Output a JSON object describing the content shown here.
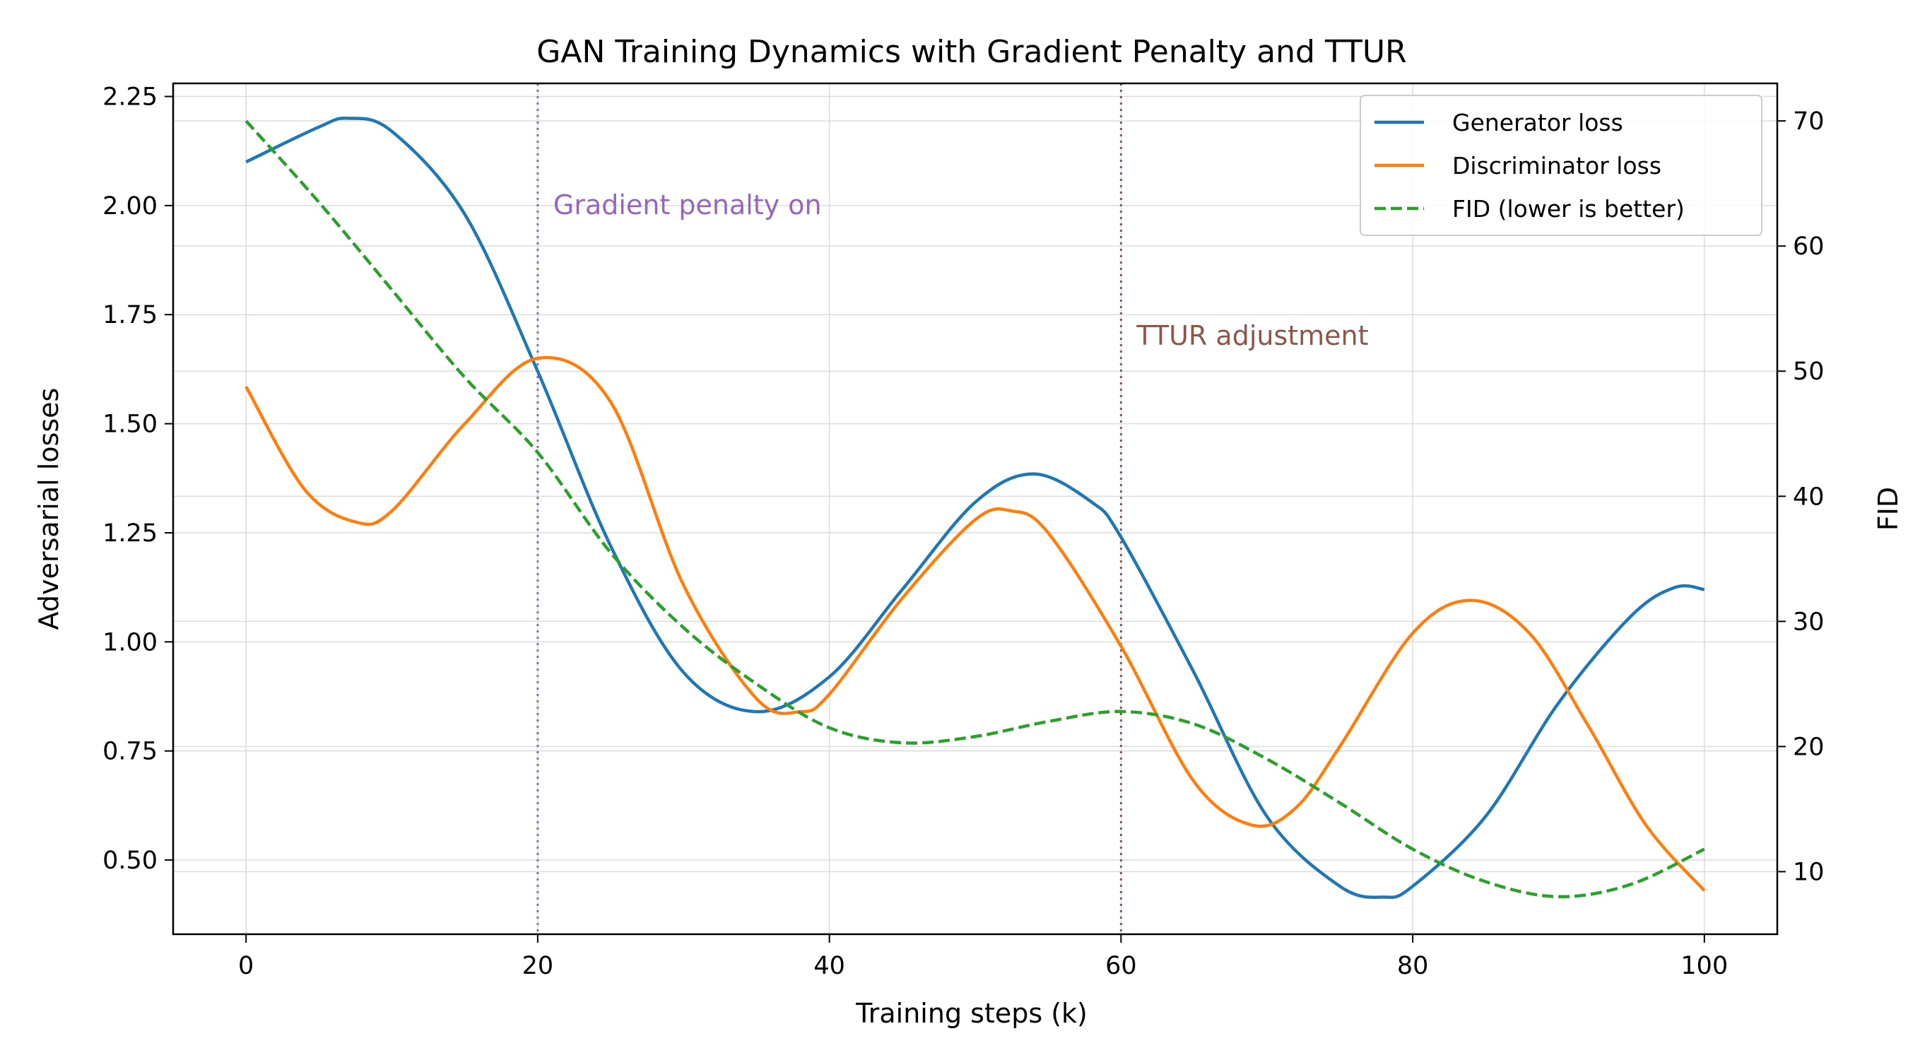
{
  "chart_data": {
    "type": "line",
    "title": "GAN Training Dynamics with Gradient Penalty and TTUR",
    "xlabel": "Training steps (k)",
    "ylabel": "Adversarial losses",
    "y2label": "FID",
    "xlim": [
      -5,
      105
    ],
    "ylim": [
      0.33,
      2.28
    ],
    "y2lim": [
      5,
      73
    ],
    "xticks": [
      0,
      20,
      40,
      60,
      80,
      100
    ],
    "yticks": [
      0.5,
      0.75,
      1.0,
      1.25,
      1.5,
      1.75,
      2.0,
      2.25
    ],
    "ytick_labels": [
      "0.50",
      "0.75",
      "1.00",
      "1.25",
      "1.50",
      "1.75",
      "2.00",
      "2.25"
    ],
    "y2ticks": [
      10,
      20,
      30,
      40,
      50,
      60,
      70
    ],
    "grid": true,
    "legend_position": "top-right",
    "series": [
      {
        "name": "Generator loss",
        "axis": "left",
        "color": "#1f77b4",
        "style": "solid",
        "x": [
          0,
          5,
          7,
          10,
          15,
          20,
          25,
          30,
          35,
          40,
          45,
          50,
          54,
          58,
          60,
          65,
          70,
          75,
          78,
          80,
          85,
          90,
          95,
          98,
          100
        ],
        "y": [
          2.1,
          2.18,
          2.2,
          2.17,
          1.98,
          1.62,
          1.22,
          0.93,
          0.84,
          0.92,
          1.12,
          1.32,
          1.385,
          1.32,
          1.24,
          0.93,
          0.6,
          0.44,
          0.415,
          0.44,
          0.6,
          0.86,
          1.06,
          1.125,
          1.12
        ]
      },
      {
        "name": "Discriminator loss",
        "axis": "left",
        "color": "#ff7f0e",
        "style": "solid",
        "x": [
          0,
          4,
          7.5,
          10,
          15,
          20,
          25,
          30,
          35,
          38,
          40,
          45,
          50,
          52.5,
          55,
          60,
          65,
          69,
          72,
          75,
          80,
          84,
          88,
          92,
          96,
          100
        ],
        "y": [
          1.585,
          1.35,
          1.275,
          1.3,
          1.5,
          1.65,
          1.55,
          1.13,
          0.87,
          0.84,
          0.88,
          1.1,
          1.28,
          1.3,
          1.25,
          0.99,
          0.68,
          0.58,
          0.62,
          0.76,
          1.02,
          1.095,
          1.02,
          0.81,
          0.58,
          0.43
        ]
      },
      {
        "name": "FID (lower is better)",
        "axis": "right",
        "color": "#2ca02c",
        "style": "dashed",
        "x": [
          0,
          5,
          10,
          15,
          20,
          25,
          30,
          35,
          40,
          45,
          50,
          55,
          60,
          65,
          70,
          75,
          80,
          85,
          90,
          95,
          100
        ],
        "y": [
          70,
          63.5,
          56.5,
          49.5,
          43.5,
          35.5,
          29.5,
          25,
          21.5,
          20.3,
          20.8,
          22,
          22.8,
          21.8,
          19,
          15.5,
          11.8,
          9.2,
          8,
          9,
          11.8
        ]
      }
    ],
    "annotations": [
      {
        "x": 20,
        "label": "Gradient penalty on",
        "color": "#9467bd",
        "label_y": 2.0
      },
      {
        "x": 60,
        "label": "TTUR adjustment",
        "color": "#8c564b",
        "label_y": 1.7
      }
    ]
  }
}
